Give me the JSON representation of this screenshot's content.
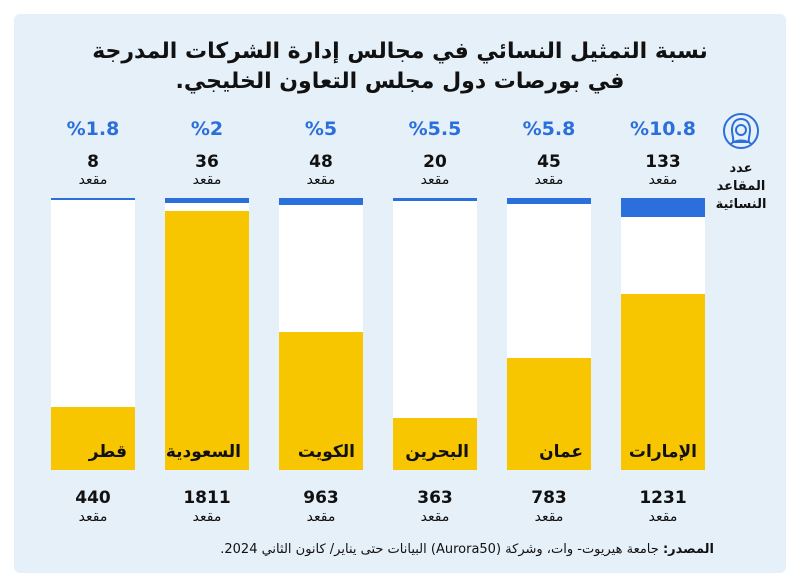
{
  "title_line1": "نسبة التمثيل النسائي في مجالس إدارة الشركات المدرجة",
  "title_line2": "في بورصات دول مجلس التعاون الخليجي.",
  "legend": {
    "label_line1": "عدد المقاعد",
    "label_line2": "النسائية",
    "icon": "woman-hijab-icon"
  },
  "unit_label": "مقعد",
  "source_label": "المصدر:",
  "source_text": "جامعة هيريوت- وات، وشركة (Aurora50) البيانات حتى يناير/ كانون الثاني 2024.",
  "colors": {
    "women": "#2a6fdb",
    "total": "#f7c600",
    "percent": "#2a6fdb",
    "panel": "#e6f0f9"
  },
  "chart_data": {
    "type": "bar",
    "categories": [
      "الإمارات",
      "عمان",
      "البحرين",
      "الكويت",
      "السعودية",
      "قطر"
    ],
    "series": [
      {
        "values": [
          133,
          45,
          20,
          48,
          36,
          8
        ]
      },
      {
        "values": [
          1231,
          783,
          363,
          963,
          1811,
          440
        ]
      }
    ],
    "percent_labels": [
      "%10.8",
      "%5.8",
      "%5.5",
      "%5",
      "%2",
      "%1.8"
    ],
    "women_counts": [
      "133",
      "45",
      "20",
      "48",
      "36",
      "8"
    ],
    "total_counts": [
      "1231",
      "783",
      "363",
      "963",
      "1811",
      "440"
    ],
    "ylim": [
      0,
      1900
    ]
  }
}
